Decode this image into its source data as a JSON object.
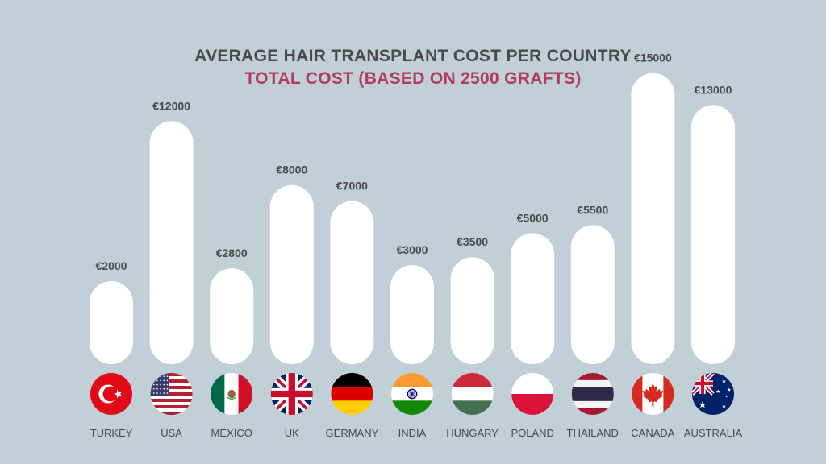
{
  "chart_data": {
    "type": "bar",
    "title": "AVERAGE HAIR TRANSPLANT COST PER COUNTRY",
    "subtitle": "TOTAL COST (BASED ON 2500 GRAFTS)",
    "categories": [
      "TURKEY",
      "USA",
      "MEXICO",
      "UK",
      "GERMANY",
      "INDIA",
      "HUNGARY",
      "POLAND",
      "THAILAND",
      "CANADA",
      "AUSTRALIA"
    ],
    "values": [
      2000,
      12000,
      2800,
      8000,
      7000,
      3000,
      3500,
      5000,
      5500,
      15000,
      13000
    ],
    "value_labels": [
      "€2000",
      "€12000",
      "€2800",
      "€8000",
      "€7000",
      "€3000",
      "€3500",
      "€5000",
      "€5500",
      "€15000",
      "€13000"
    ],
    "flags": [
      "turkey-flag",
      "usa-flag",
      "mexico-flag",
      "uk-flag",
      "germany-flag",
      "india-flag",
      "hungary-flag",
      "poland-flag",
      "thailand-flag",
      "canada-flag",
      "australia-flag"
    ],
    "ylim": [
      0,
      15000
    ],
    "grid": false,
    "bar_color": "#ffffff",
    "background": "#c1d0d6",
    "title_color": "#4a4a4a",
    "subtitle_color": "#b13a5e"
  }
}
